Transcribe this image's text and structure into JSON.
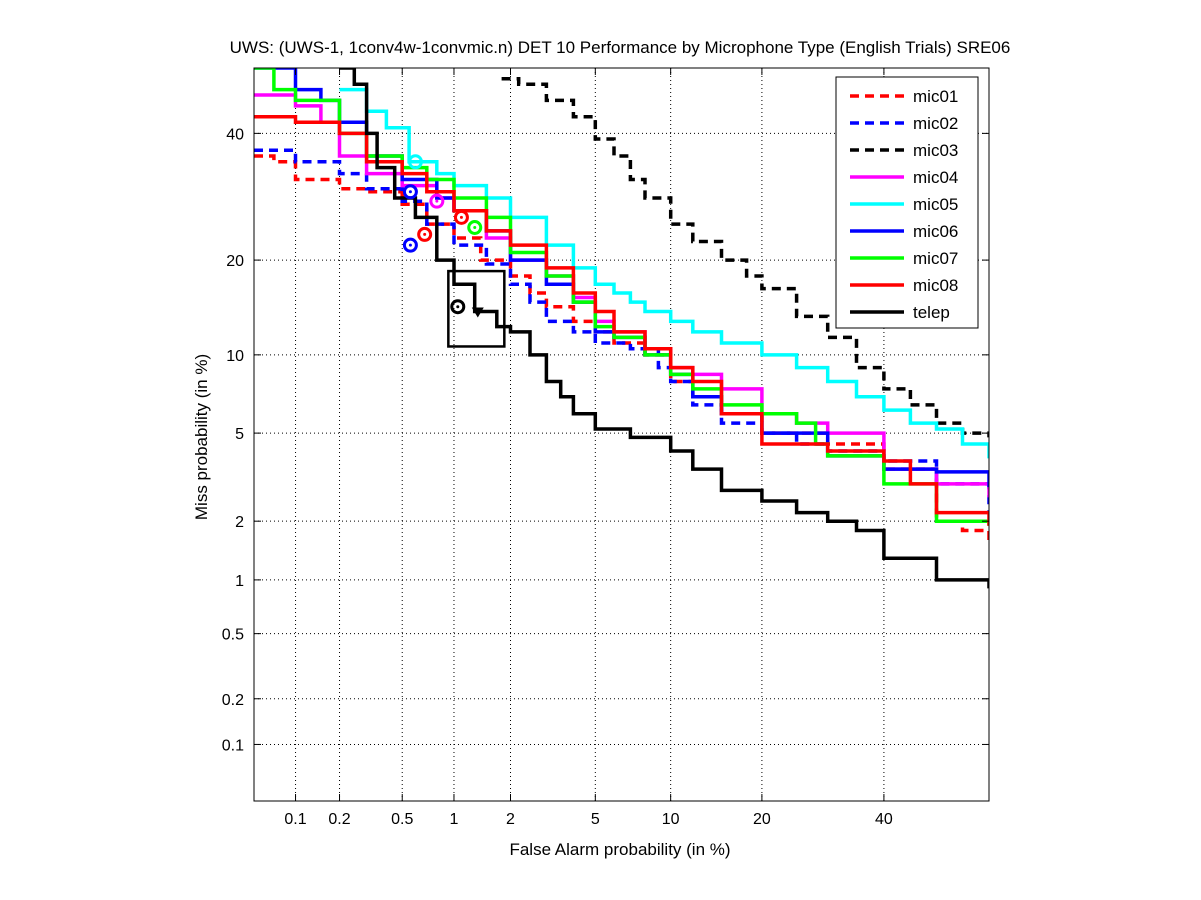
{
  "chart_data": {
    "type": "line",
    "title": "UWS: (UWS-1, 1conv4w-1convmic.n) DET 10 Performance by Microphone Type (English Trials) SRE06",
    "xlabel": "False Alarm probability (in %)",
    "ylabel": "Miss probability (in %)",
    "x_scale": "probit",
    "y_scale": "probit",
    "xlim": [
      0.05,
      60
    ],
    "ylim": [
      0.04,
      52
    ],
    "x_ticks": [
      0.1,
      0.2,
      0.5,
      1,
      2,
      5,
      10,
      20,
      40
    ],
    "x_tick_labels": [
      "0.1",
      "0.2",
      "0.5",
      "1",
      "2",
      "5",
      "10",
      "20",
      "40"
    ],
    "y_ticks": [
      0.1,
      0.2,
      0.5,
      1,
      2,
      5,
      10,
      20,
      40
    ],
    "y_tick_labels": [
      "0.1",
      "0.2",
      "0.5",
      "1",
      "2",
      "5",
      "10",
      "20",
      "40"
    ],
    "grid": true,
    "legend_position": "top-right",
    "series": [
      {
        "name": "mic01",
        "color": "#ff0000",
        "dash": "dashed",
        "points": [
          [
            0.05,
            36
          ],
          [
            0.07,
            35
          ],
          [
            0.1,
            32
          ],
          [
            0.2,
            30.5
          ],
          [
            0.3,
            30
          ],
          [
            0.5,
            28
          ],
          [
            0.7,
            25
          ],
          [
            1,
            23
          ],
          [
            1.4,
            20
          ],
          [
            2,
            18
          ],
          [
            2.5,
            16
          ],
          [
            3,
            14.5
          ],
          [
            4,
            13
          ],
          [
            5,
            12
          ],
          [
            6,
            11
          ],
          [
            8,
            10
          ],
          [
            10,
            8
          ],
          [
            12,
            7
          ],
          [
            15,
            6
          ],
          [
            20,
            5
          ],
          [
            30,
            4.5
          ],
          [
            40,
            3.5
          ],
          [
            50,
            2
          ],
          [
            55,
            1.8
          ],
          [
            60,
            1.6
          ]
        ],
        "actual_dcf": [
          0.68,
          23.5
        ]
      },
      {
        "name": "mic02",
        "color": "#0000ff",
        "dash": "dashed",
        "points": [
          [
            0.05,
            37
          ],
          [
            0.1,
            35
          ],
          [
            0.2,
            33
          ],
          [
            0.3,
            30.5
          ],
          [
            0.5,
            28.5
          ],
          [
            0.7,
            25
          ],
          [
            1,
            22
          ],
          [
            1.5,
            19.5
          ],
          [
            2,
            17
          ],
          [
            2.5,
            15
          ],
          [
            3,
            13
          ],
          [
            4,
            12
          ],
          [
            5,
            11
          ],
          [
            7,
            10.5
          ],
          [
            9,
            9
          ],
          [
            10,
            8
          ],
          [
            12,
            6.5
          ],
          [
            15,
            5.5
          ],
          [
            20,
            5
          ],
          [
            25,
            4.5
          ],
          [
            30,
            4.2
          ],
          [
            40,
            3.8
          ],
          [
            50,
            3
          ],
          [
            60,
            2.2
          ]
        ],
        "actual_dcf": [
          0.56,
          22
        ]
      },
      {
        "name": "mic03",
        "color": "#000000",
        "dash": "dashed",
        "points": [
          [
            1.8,
            50
          ],
          [
            2.2,
            49
          ],
          [
            3,
            46
          ],
          [
            4,
            43
          ],
          [
            5,
            39
          ],
          [
            6,
            36
          ],
          [
            7,
            32
          ],
          [
            8,
            29
          ],
          [
            10,
            25
          ],
          [
            12,
            22.5
          ],
          [
            15,
            20
          ],
          [
            18,
            18
          ],
          [
            20,
            16.5
          ],
          [
            25,
            13.5
          ],
          [
            30,
            11.5
          ],
          [
            35,
            9
          ],
          [
            40,
            7.5
          ],
          [
            45,
            6.5
          ],
          [
            50,
            5.5
          ],
          [
            55,
            5
          ],
          [
            60,
            4.8
          ]
        ]
      },
      {
        "name": "mic04",
        "color": "#ff00ff",
        "dash": "solid",
        "points": [
          [
            0.05,
            47
          ],
          [
            0.1,
            45
          ],
          [
            0.15,
            42
          ],
          [
            0.2,
            36
          ],
          [
            0.3,
            33
          ],
          [
            0.5,
            31
          ],
          [
            0.8,
            29
          ],
          [
            1,
            27
          ],
          [
            1.5,
            23
          ],
          [
            2,
            20
          ],
          [
            3,
            18
          ],
          [
            4,
            15.5
          ],
          [
            5,
            13
          ],
          [
            6,
            12
          ],
          [
            8,
            10.5
          ],
          [
            10,
            9
          ],
          [
            12,
            8.5
          ],
          [
            15,
            7.5
          ],
          [
            20,
            6
          ],
          [
            25,
            5.5
          ],
          [
            30,
            5
          ],
          [
            40,
            3.5
          ],
          [
            50,
            3
          ],
          [
            60,
            2.6
          ]
        ],
        "actual_dcf": [
          0.8,
          28.5
        ]
      },
      {
        "name": "mic05",
        "color": "#00ffff",
        "dash": "solid",
        "points": [
          [
            0.2,
            48
          ],
          [
            0.3,
            44
          ],
          [
            0.4,
            41
          ],
          [
            0.55,
            35
          ],
          [
            0.8,
            33
          ],
          [
            1,
            31
          ],
          [
            1.5,
            29
          ],
          [
            2,
            26
          ],
          [
            3,
            22
          ],
          [
            4,
            19
          ],
          [
            5,
            17
          ],
          [
            6,
            16
          ],
          [
            7,
            15
          ],
          [
            8,
            14
          ],
          [
            10,
            13
          ],
          [
            12,
            12
          ],
          [
            15,
            11
          ],
          [
            20,
            10
          ],
          [
            25,
            9
          ],
          [
            30,
            8
          ],
          [
            35,
            7
          ],
          [
            40,
            6.2
          ],
          [
            45,
            5.5
          ],
          [
            50,
            5.2
          ],
          [
            55,
            4.5
          ],
          [
            60,
            3.9
          ]
        ],
        "actual_dcf": [
          0.6,
          35
        ]
      },
      {
        "name": "mic06",
        "color": "#0000ff",
        "dash": "solid",
        "points": [
          [
            0.05,
            52
          ],
          [
            0.1,
            48
          ],
          [
            0.15,
            46
          ],
          [
            0.2,
            42
          ],
          [
            0.3,
            36
          ],
          [
            0.5,
            32
          ],
          [
            0.8,
            29
          ],
          [
            1,
            27
          ],
          [
            1.5,
            24
          ],
          [
            2,
            20
          ],
          [
            3,
            17
          ],
          [
            4,
            15
          ],
          [
            5,
            12
          ],
          [
            6,
            11.5
          ],
          [
            8,
            10
          ],
          [
            10,
            8.5
          ],
          [
            12,
            7
          ],
          [
            15,
            6
          ],
          [
            20,
            5
          ],
          [
            30,
            4
          ],
          [
            40,
            3.5
          ],
          [
            50,
            3.4
          ],
          [
            60,
            2.9
          ]
        ],
        "actual_dcf": [
          0.56,
          30
        ]
      },
      {
        "name": "mic07",
        "color": "#00ff00",
        "dash": "solid",
        "points": [
          [
            0.05,
            52
          ],
          [
            0.07,
            48
          ],
          [
            0.1,
            46
          ],
          [
            0.2,
            40
          ],
          [
            0.3,
            36
          ],
          [
            0.5,
            34
          ],
          [
            0.7,
            32
          ],
          [
            1,
            29
          ],
          [
            1.5,
            26
          ],
          [
            2,
            21
          ],
          [
            3,
            18
          ],
          [
            4,
            15
          ],
          [
            5,
            12.5
          ],
          [
            6,
            11.5
          ],
          [
            8,
            10
          ],
          [
            10,
            8.5
          ],
          [
            12,
            7.5
          ],
          [
            15,
            6.5
          ],
          [
            20,
            6
          ],
          [
            25,
            5.5
          ],
          [
            28,
            4.5
          ],
          [
            30,
            4
          ],
          [
            40,
            3
          ],
          [
            50,
            2
          ],
          [
            60,
            1.9
          ]
        ],
        "actual_dcf": [
          1.3,
          24.5
        ]
      },
      {
        "name": "mic08",
        "color": "#ff0000",
        "dash": "solid",
        "points": [
          [
            0.05,
            43
          ],
          [
            0.1,
            42
          ],
          [
            0.2,
            40
          ],
          [
            0.3,
            35
          ],
          [
            0.5,
            33
          ],
          [
            0.7,
            30
          ],
          [
            1,
            27
          ],
          [
            1.5,
            24
          ],
          [
            2,
            22
          ],
          [
            3,
            19
          ],
          [
            4,
            16
          ],
          [
            5,
            14
          ],
          [
            6,
            12
          ],
          [
            8,
            10.5
          ],
          [
            10,
            9
          ],
          [
            12,
            8
          ],
          [
            15,
            6
          ],
          [
            20,
            4.5
          ],
          [
            30,
            4.2
          ],
          [
            40,
            3.8
          ],
          [
            45,
            3
          ],
          [
            50,
            2.2
          ],
          [
            60,
            1.9
          ]
        ],
        "actual_dcf": [
          1.1,
          26
        ]
      },
      {
        "name": "telep",
        "color": "#000000",
        "dash": "solid",
        "points": [
          [
            0.2,
            52
          ],
          [
            0.25,
            49
          ],
          [
            0.3,
            40
          ],
          [
            0.35,
            34
          ],
          [
            0.45,
            29
          ],
          [
            0.6,
            26
          ],
          [
            0.8,
            20
          ],
          [
            1,
            17
          ],
          [
            1.3,
            14
          ],
          [
            1.7,
            12.5
          ],
          [
            2,
            12
          ],
          [
            2.5,
            10
          ],
          [
            3,
            8
          ],
          [
            3.5,
            7
          ],
          [
            4,
            6
          ],
          [
            5,
            5.2
          ],
          [
            7,
            4.8
          ],
          [
            10,
            4.2
          ],
          [
            12,
            3.5
          ],
          [
            15,
            2.8
          ],
          [
            20,
            2.5
          ],
          [
            25,
            2.2
          ],
          [
            30,
            2
          ],
          [
            35,
            1.8
          ],
          [
            40,
            1.3
          ],
          [
            50,
            1
          ],
          [
            60,
            0.9
          ]
        ],
        "actual_dcf": [
          1.05,
          14.5
        ],
        "min_dcf": [
          1.35,
          14
        ]
      }
    ],
    "annotations": [
      {
        "type": "confidence-box",
        "series": "telep",
        "x_range": [
          0.93,
          1.86
        ],
        "y_range": [
          10.7,
          18.6
        ]
      }
    ]
  }
}
